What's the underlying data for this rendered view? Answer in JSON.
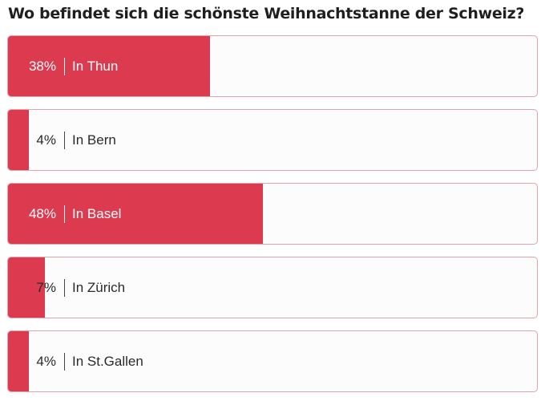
{
  "question": "Wo befindet sich die schönste Weihnachtstanne der Schweiz?",
  "accent_color": "#dc3a4f",
  "options": [
    {
      "percent_label": "38%",
      "name": "In Thun",
      "share": 0.38
    },
    {
      "percent_label": "4%",
      "name": "In Bern",
      "share": 0.04
    },
    {
      "percent_label": "48%",
      "name": "In Basel",
      "share": 0.48
    },
    {
      "percent_label": "7%",
      "name": "In Zürich",
      "share": 0.07
    },
    {
      "percent_label": "4%",
      "name": "In St.Gallen",
      "share": 0.04
    }
  ]
}
